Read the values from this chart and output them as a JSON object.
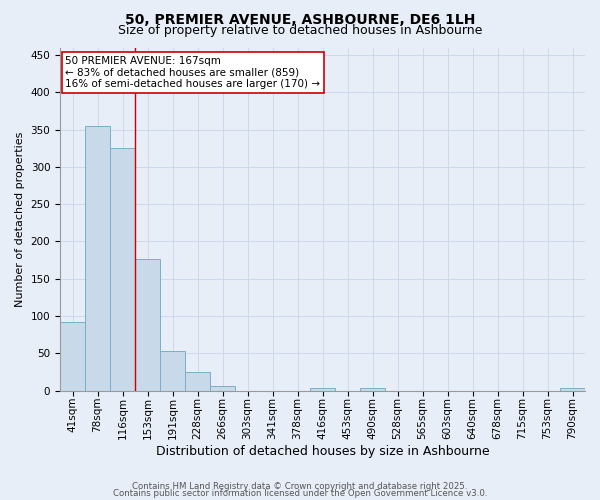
{
  "title": "50, PREMIER AVENUE, ASHBOURNE, DE6 1LH",
  "subtitle": "Size of property relative to detached houses in Ashbourne",
  "xlabel": "Distribution of detached houses by size in Ashbourne",
  "ylabel": "Number of detached properties",
  "bin_labels": [
    "41sqm",
    "78sqm",
    "116sqm",
    "153sqm",
    "191sqm",
    "228sqm",
    "266sqm",
    "303sqm",
    "341sqm",
    "378sqm",
    "416sqm",
    "453sqm",
    "490sqm",
    "528sqm",
    "565sqm",
    "603sqm",
    "640sqm",
    "678sqm",
    "715sqm",
    "753sqm",
    "790sqm"
  ],
  "bar_values": [
    92,
    355,
    325,
    177,
    53,
    25,
    6,
    0,
    0,
    0,
    3,
    0,
    3,
    0,
    0,
    0,
    0,
    0,
    0,
    0,
    4
  ],
  "bar_color": "#c8d9ea",
  "bar_edgecolor": "#7aafc8",
  "ylim": [
    0,
    460
  ],
  "yticks": [
    0,
    50,
    100,
    150,
    200,
    250,
    300,
    350,
    400,
    450
  ],
  "property_line_index": 3,
  "property_line_color": "#cc0000",
  "annotation_text": "50 PREMIER AVENUE: 167sqm\n← 83% of detached houses are smaller (859)\n16% of semi-detached houses are larger (170) →",
  "annotation_box_facecolor": "#ffffff",
  "annotation_box_edgecolor": "#cc0000",
  "grid_color": "#c8d4e8",
  "background_color": "#e8eef8",
  "footer_line1": "Contains HM Land Registry data © Crown copyright and database right 2025.",
  "footer_line2": "Contains public sector information licensed under the Open Government Licence v3.0.",
  "title_fontsize": 10,
  "subtitle_fontsize": 9,
  "annotation_fontsize": 7.5,
  "tick_fontsize": 7.5,
  "xlabel_fontsize": 9,
  "ylabel_fontsize": 8,
  "footer_fontsize": 6.2
}
